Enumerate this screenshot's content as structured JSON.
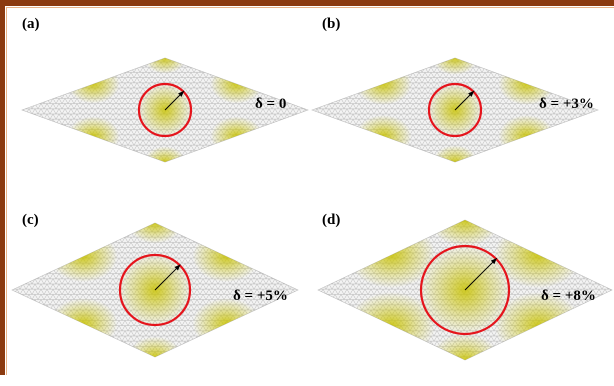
{
  "panels": [
    {
      "label": "(a)",
      "delta": "δ = 0"
    },
    {
      "label": "(b)",
      "delta": "δ = +3%"
    },
    {
      "label": "(c)",
      "delta": "δ = +5%"
    },
    {
      "label": "(d)",
      "delta": "δ = +8%"
    }
  ],
  "colors": {
    "frame": "#8b3a0f",
    "lattice": "#9a9a9a",
    "highlight": "#c8c200",
    "ring": "#e5141c",
    "arrow": "#000000"
  }
}
